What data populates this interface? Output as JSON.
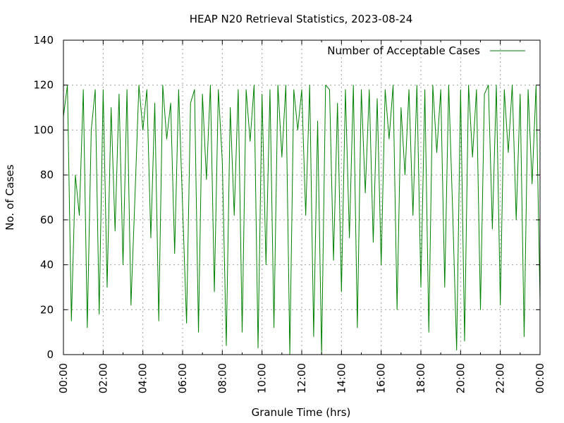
{
  "chart_data": {
    "type": "line",
    "title": "HEAP N20 Retrieval Statistics, 2023-08-24",
    "xlabel": "Granule Time (hrs)",
    "ylabel": "No. of Cases",
    "xlim": [
      0,
      24
    ],
    "ylim": [
      0,
      140
    ],
    "xticks": [
      "00:00",
      "02:00",
      "04:00",
      "06:00",
      "08:00",
      "10:00",
      "12:00",
      "14:00",
      "16:00",
      "18:00",
      "20:00",
      "22:00",
      "00:00"
    ],
    "yticks": [
      0,
      20,
      40,
      60,
      80,
      100,
      120,
      140
    ],
    "grid": true,
    "legend": "top-right",
    "series": [
      {
        "name": "Number of Acceptable Cases",
        "color": "#008000",
        "x": [
          0.0,
          0.2,
          0.4,
          0.6,
          0.8,
          1.0,
          1.2,
          1.4,
          1.6,
          1.8,
          2.0,
          2.2,
          2.4,
          2.6,
          2.8,
          3.0,
          3.2,
          3.4,
          3.6,
          3.8,
          4.0,
          4.2,
          4.4,
          4.6,
          4.8,
          5.0,
          5.2,
          5.4,
          5.6,
          5.8,
          6.0,
          6.2,
          6.4,
          6.6,
          6.8,
          7.0,
          7.2,
          7.4,
          7.6,
          7.8,
          8.0,
          8.2,
          8.4,
          8.6,
          8.8,
          9.0,
          9.2,
          9.4,
          9.6,
          9.8,
          10.0,
          10.2,
          10.4,
          10.6,
          10.8,
          11.0,
          11.2,
          11.4,
          11.6,
          11.8,
          12.0,
          12.2,
          12.4,
          12.6,
          12.8,
          13.0,
          13.2,
          13.4,
          13.6,
          13.8,
          14.0,
          14.2,
          14.4,
          14.6,
          14.8,
          15.0,
          15.2,
          15.4,
          15.6,
          15.8,
          16.0,
          16.2,
          16.4,
          16.6,
          16.8,
          17.0,
          17.2,
          17.4,
          17.6,
          17.8,
          18.0,
          18.2,
          18.4,
          18.6,
          18.8,
          19.0,
          19.2,
          19.4,
          19.6,
          19.8,
          20.0,
          20.2,
          20.4,
          20.6,
          20.8,
          21.0,
          21.2,
          21.4,
          21.6,
          21.8,
          22.0,
          22.2,
          22.4,
          22.6,
          22.8,
          23.0,
          23.2,
          23.4,
          23.6,
          23.8,
          24.0
        ],
        "y": [
          106,
          120,
          15,
          80,
          62,
          118,
          12,
          100,
          118,
          18,
          118,
          30,
          110,
          55,
          116,
          40,
          118,
          22,
          70,
          120,
          100,
          118,
          52,
          112,
          15,
          120,
          96,
          112,
          45,
          118,
          66,
          14,
          112,
          118,
          10,
          116,
          78,
          120,
          28,
          118,
          86,
          4,
          110,
          62,
          118,
          10,
          118,
          95,
          120,
          3,
          116,
          40,
          118,
          12,
          120,
          88,
          120,
          0,
          118,
          100,
          118,
          62,
          120,
          8,
          104,
          0,
          120,
          118,
          42,
          112,
          28,
          118,
          52,
          120,
          12,
          118,
          72,
          118,
          50,
          114,
          40,
          118,
          96,
          120,
          20,
          110,
          80,
          118,
          62,
          120,
          30,
          118,
          10,
          120,
          90,
          118,
          30,
          120,
          64,
          2,
          118,
          6,
          120,
          88,
          118,
          20,
          116,
          120,
          56,
          120,
          22,
          118,
          90,
          120,
          60,
          116,
          8,
          118,
          76,
          120,
          24
        ]
      }
    ]
  }
}
